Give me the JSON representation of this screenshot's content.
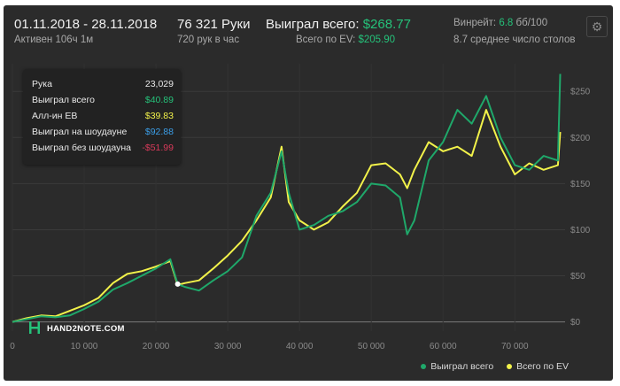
{
  "header": {
    "date_range": "01.11.2018 - 28.11.2018",
    "active": "Активен 106ч 1м",
    "hands_total": "76 321 Руки",
    "hands_rate": "720 рук в час",
    "won_label": "Выиграл всего:",
    "won_value": "$268.77",
    "ev_label": "Всего по EV:",
    "ev_value": "$205.90",
    "winrate_label": "Винрейт:",
    "winrate_value": "6.8",
    "winrate_unit": "бб/100",
    "tables": "8.7 среднее число столов",
    "settings_icon": "gear-icon"
  },
  "tooltip": {
    "rows": [
      {
        "label": "Рука",
        "value": "23,029",
        "color": "#e8e8e8"
      },
      {
        "label": "Выиграл всего",
        "value": "$40.89",
        "color": "#25c27a"
      },
      {
        "label": "Алл-ин ЕВ",
        "value": "$39.83",
        "color": "#f2f24a"
      },
      {
        "label": "Выиграл на шоудауне",
        "value": "$92.88",
        "color": "#3b9ee8"
      },
      {
        "label": "Выиграл без шоудауна",
        "value": "-$51.99",
        "color": "#d83a5a"
      }
    ]
  },
  "logo": {
    "text": "HAND2NOTE.COM"
  },
  "legend": [
    {
      "name": "Выиграл всего",
      "color": "#1fa86a"
    },
    {
      "name": "Всего по EV",
      "color": "#f2f24a"
    }
  ],
  "chart_data": {
    "type": "line",
    "x": [
      0,
      2000,
      4000,
      6000,
      8000,
      10000,
      12000,
      14000,
      16000,
      18000,
      20000,
      22000,
      23029,
      24000,
      26000,
      28000,
      30000,
      32000,
      34000,
      36000,
      37500,
      38500,
      40000,
      42000,
      44000,
      46000,
      48000,
      50000,
      52000,
      54000,
      55000,
      56000,
      58000,
      60000,
      62000,
      64000,
      66000,
      68000,
      70000,
      72000,
      74000,
      76000,
      76321
    ],
    "series": [
      {
        "name": "Выиграл всего",
        "color": "#1fa86a",
        "values": [
          0,
          3,
          6,
          5,
          7,
          14,
          22,
          35,
          42,
          50,
          58,
          68,
          41,
          38,
          34,
          45,
          55,
          70,
          115,
          140,
          185,
          140,
          100,
          105,
          115,
          120,
          130,
          150,
          148,
          135,
          95,
          110,
          175,
          195,
          230,
          215,
          245,
          200,
          170,
          165,
          180,
          175,
          269
        ]
      },
      {
        "name": "Всего по EV",
        "color": "#f2f24a",
        "values": [
          0,
          4,
          7,
          6,
          12,
          18,
          26,
          42,
          52,
          55,
          60,
          66,
          40,
          42,
          45,
          58,
          72,
          88,
          110,
          135,
          190,
          130,
          110,
          100,
          108,
          125,
          140,
          170,
          172,
          160,
          145,
          165,
          195,
          185,
          190,
          180,
          230,
          190,
          160,
          172,
          165,
          170,
          206
        ]
      }
    ],
    "xlim": [
      0,
      77000
    ],
    "ylim": [
      -10,
      280
    ],
    "x_ticks": [
      0,
      10000,
      20000,
      30000,
      40000,
      50000,
      60000,
      70000
    ],
    "x_tick_labels": [
      "0",
      "10 000",
      "20 000",
      "30 000",
      "40 000",
      "50 000",
      "60 000",
      "70 000"
    ],
    "y_ticks": [
      0,
      50,
      100,
      150,
      200,
      250
    ],
    "y_tick_labels": [
      "$0",
      "$50",
      "$100",
      "$150",
      "$200",
      "$250"
    ],
    "grid": true,
    "legend_position": "bottom-right"
  }
}
